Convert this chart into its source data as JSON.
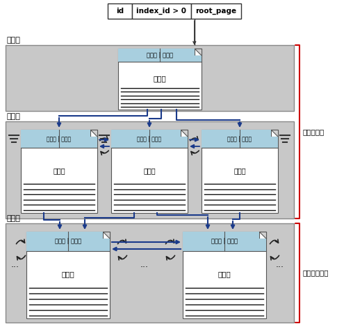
{
  "bg_color": "#c8c8c8",
  "page_bg": "#ffffff",
  "header_bg": "#a8cfdf",
  "text_color": "#000000",
  "arrow_color": "#1a3a8a",
  "red_color": "#cc0000",
  "root_label": "根节点",
  "leaf_label": "叶节点",
  "data_label": "数据页",
  "right_label1": "非聚集索引",
  "right_label2": "堆或聚集索引",
  "table_headers": [
    "id",
    "index_id > 0",
    "root_page"
  ],
  "page_header_text": "上一页 | 下一页",
  "index_row_text": "索引行",
  "data_row_text": "数据行"
}
